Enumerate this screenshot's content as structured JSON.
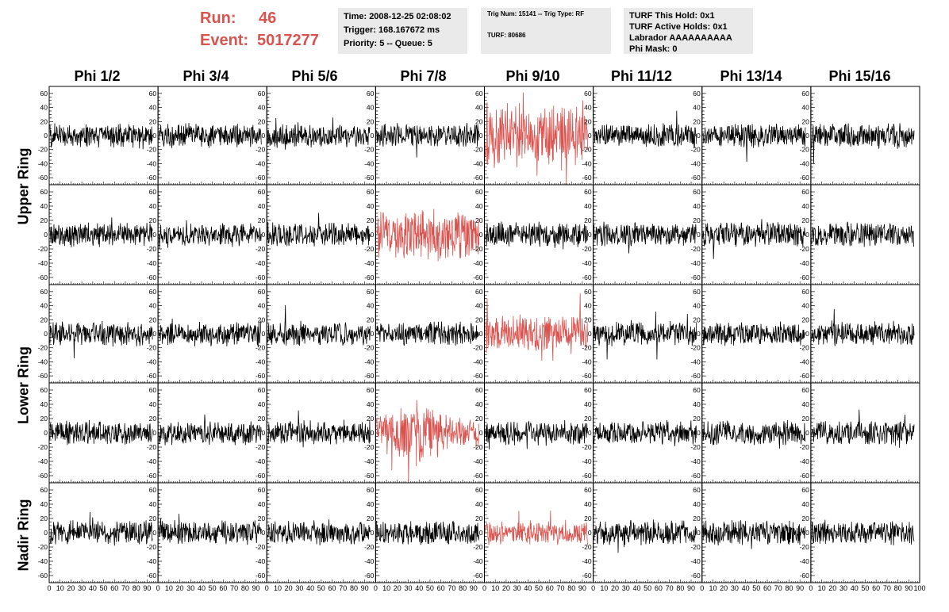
{
  "header": {
    "run_label": "Run:",
    "run_value": "46",
    "event_label": "Event:",
    "event_value": "5017277",
    "time": "Time: 2008-12-25 02:08:02",
    "trigger": "Trigger: 168.167672 ms",
    "priority": "Priority: 5 -- Queue: 5",
    "trig_num": "Trig Num: 15141 -- Trig Type: RF",
    "turf": "TURF: 80686",
    "turf_this_hold": "TURF This Hold: 0x1",
    "turf_active_holds": "TURF Active Holds: 0x1",
    "labrador": "Labrador AAAAAAAAAA",
    "phi_mask": "Phi Mask: 0"
  },
  "phi_labels": [
    "Phi 1/2",
    "Phi 3/4",
    "Phi 5/6",
    "Phi 7/8",
    "Phi 9/10",
    "Phi 11/12",
    "Phi 13/14",
    "Phi 15/16"
  ],
  "ring_labels": [
    "Upper Ring",
    "Lower Ring",
    "Nadir Ring"
  ],
  "colors": {
    "trace": "#000000",
    "highlight": "#d9534f",
    "run_text": "#d9534f",
    "info_bg": "#eaeaea"
  },
  "chart_data": {
    "type": "line",
    "layout": "grid of 5 rows x 8 columns of waveform panels",
    "x_range": [
      0,
      100
    ],
    "y_range": [
      -70,
      70
    ],
    "x_tick_labels": [
      "0",
      "10",
      "20",
      "30",
      "40",
      "50",
      "60",
      "70",
      "80",
      "90",
      "100"
    ],
    "y_tick_labels": [
      "60",
      "40",
      "20",
      "0",
      "-20",
      "-40",
      "-60"
    ],
    "grid": false,
    "rows": [
      "Upper Ring (row 1)",
      "Upper Ring (row 2)",
      "Lower Ring (row 1)",
      "Lower Ring (row 2)",
      "Nadir Ring"
    ],
    "columns": [
      "Phi 1/2",
      "Phi 3/4",
      "Phi 5/6",
      "Phi 7/8",
      "Phi 9/10",
      "Phi 11/12",
      "Phi 13/14",
      "Phi 15/16"
    ],
    "highlighted_panels": [
      {
        "row": 0,
        "col": 4,
        "amplitude": 38
      },
      {
        "row": 1,
        "col": 3,
        "amplitude": 28
      },
      {
        "row": 2,
        "col": 4,
        "amplitude": 22
      },
      {
        "row": 3,
        "col": 3,
        "amplitude": 34
      },
      {
        "row": 4,
        "col": 4,
        "amplitude": 14
      }
    ],
    "typical_amplitude": 14,
    "samples_per_trace": 260
  }
}
